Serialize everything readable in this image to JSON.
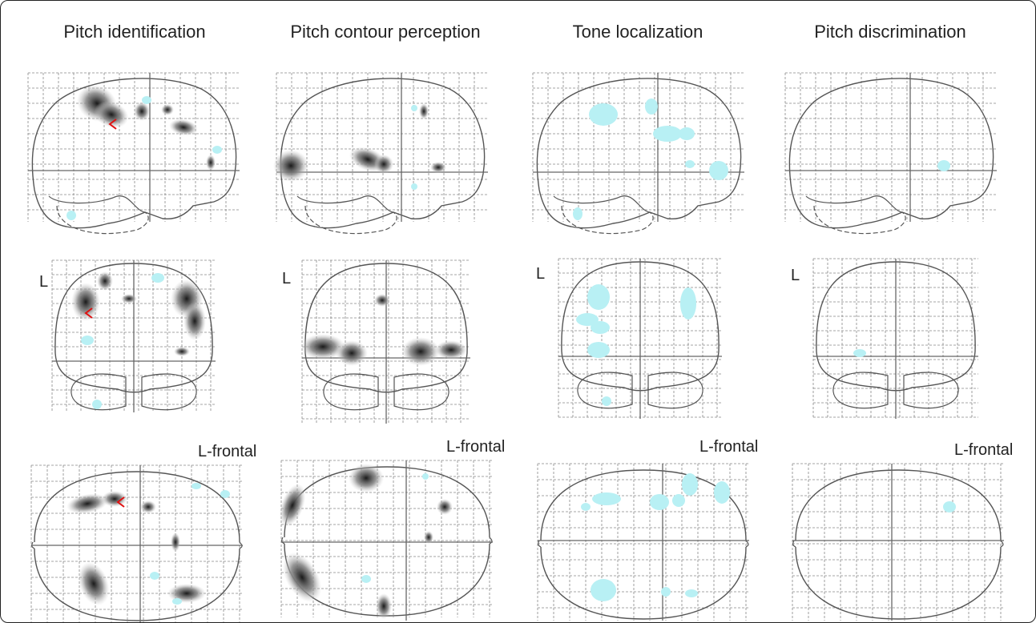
{
  "figure": {
    "columns": [
      {
        "title": "Pitch identification",
        "hemisphere_label": "L",
        "view_label": "L-frontal"
      },
      {
        "title": "Pitch contour perception",
        "hemisphere_label": "L",
        "view_label": "L-frontal"
      },
      {
        "title": "Tone localization",
        "hemisphere_label": "L",
        "view_label": "L-frontal"
      },
      {
        "title": "Pitch discrimination",
        "hemisphere_label": "L",
        "view_label": "L-frontal"
      }
    ],
    "colors": {
      "activation_dark": "#1a1a1a",
      "activation_mid": "#8a8a8a",
      "deactivation": "#b8f0f4",
      "maximum_marker": "#e01010",
      "outline": "#555555",
      "grid": "#888888"
    }
  }
}
